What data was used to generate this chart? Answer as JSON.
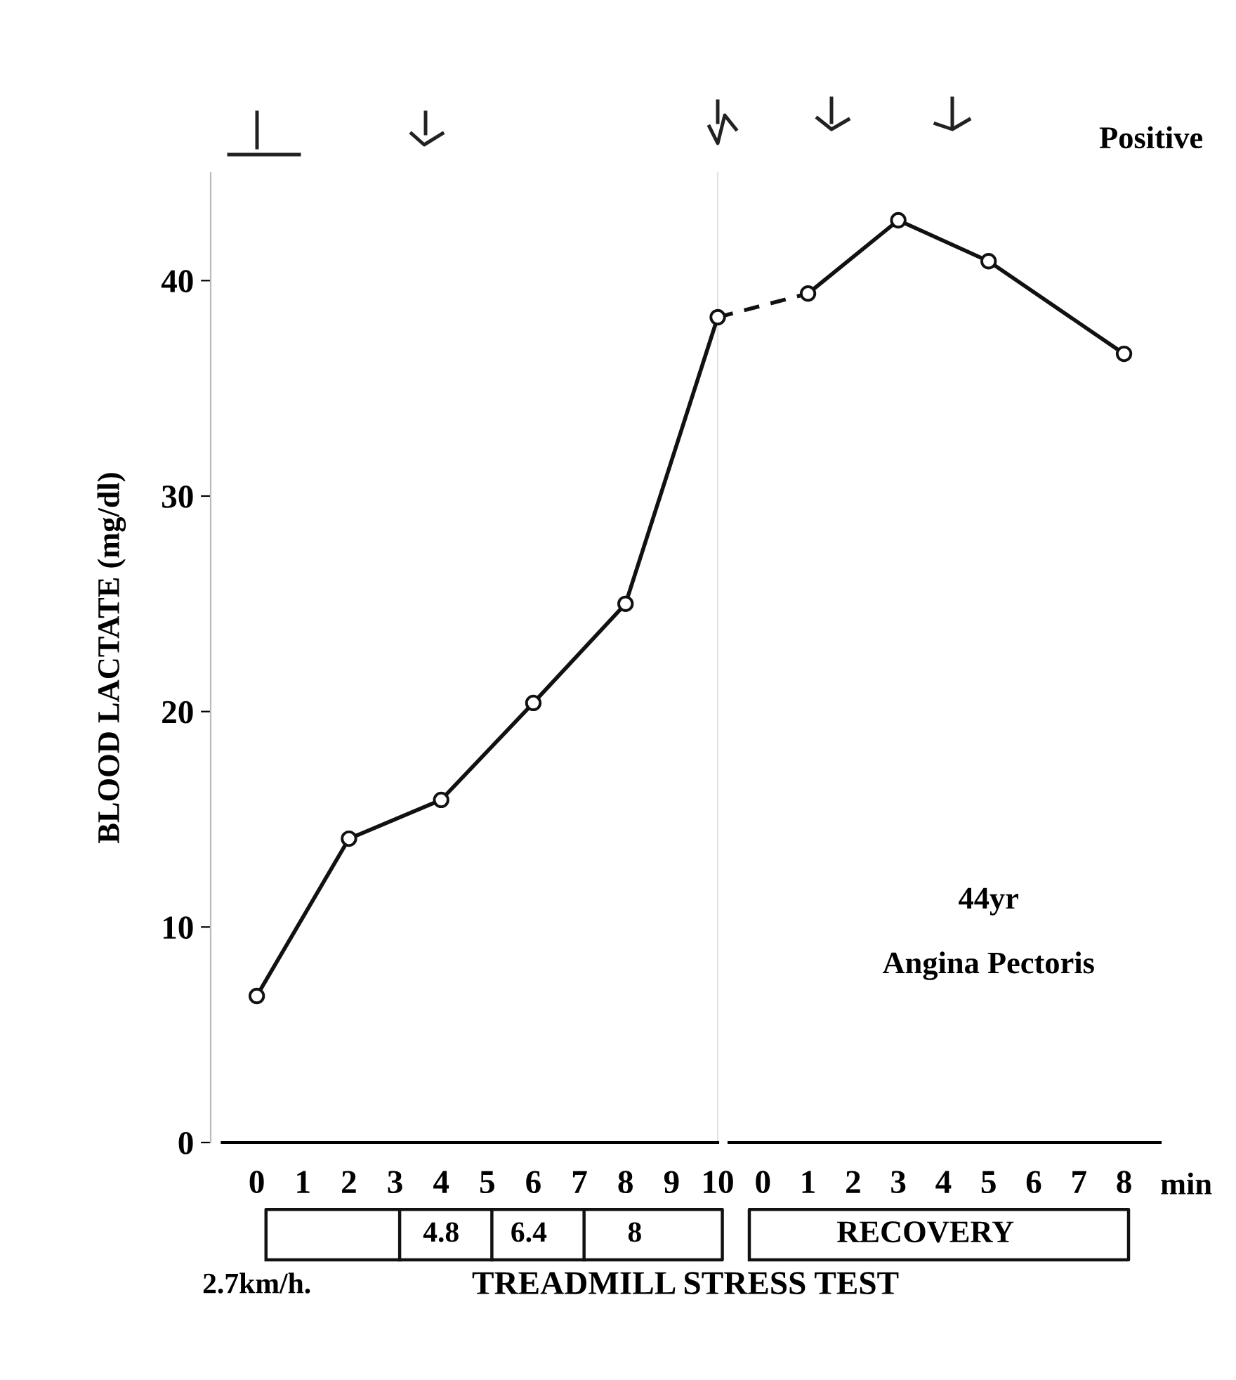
{
  "chart_data": [
    {
      "type": "line",
      "ylabel": "BLOOD LACTATE (mg/dl)",
      "series": [
        {
          "type": "line",
          "color": "#111111",
          "marker": "circle",
          "line_style": "solid",
          "x": [
            0,
            2,
            4,
            6,
            8,
            10
          ],
          "values": [
            6.8,
            14.1,
            15.9,
            20.4,
            25.0,
            38.3
          ]
        }
      ],
      "xlim": [
        -1,
        10
      ],
      "xticks": [
        0,
        1,
        2,
        3,
        4,
        5,
        6,
        7,
        8,
        9,
        10
      ],
      "ylim": [
        0,
        45
      ],
      "yticks": [
        0,
        10,
        20,
        30,
        40
      ],
      "annotations": [
        "4.8",
        "6.4",
        "8",
        "2.7km/h.",
        "TREADMILL STRESS TEST"
      ]
    },
    {
      "type": "line",
      "xlabel": "min",
      "series": [
        {
          "type": "line",
          "color": "#111111",
          "line_style": "dashed",
          "x": [
            -1,
            1
          ],
          "values": [
            38.3,
            39.4
          ]
        },
        {
          "type": "line",
          "color": "#111111",
          "marker": "circle",
          "line_style": "solid",
          "x": [
            1,
            3,
            5,
            8
          ],
          "values": [
            39.4,
            42.8,
            40.9,
            36.6
          ]
        }
      ],
      "xlim": [
        -1,
        8.8
      ],
      "xticks": [
        0,
        1,
        2,
        3,
        4,
        5,
        6,
        7,
        8
      ],
      "ylim": [
        0,
        45
      ],
      "yticks": [
        0,
        10,
        20,
        30,
        40
      ],
      "tick_labels": "x",
      "annotations": [
        "Positive",
        "44yr",
        "Angina Pectoris",
        "RECOVERY"
      ]
    }
  ]
}
